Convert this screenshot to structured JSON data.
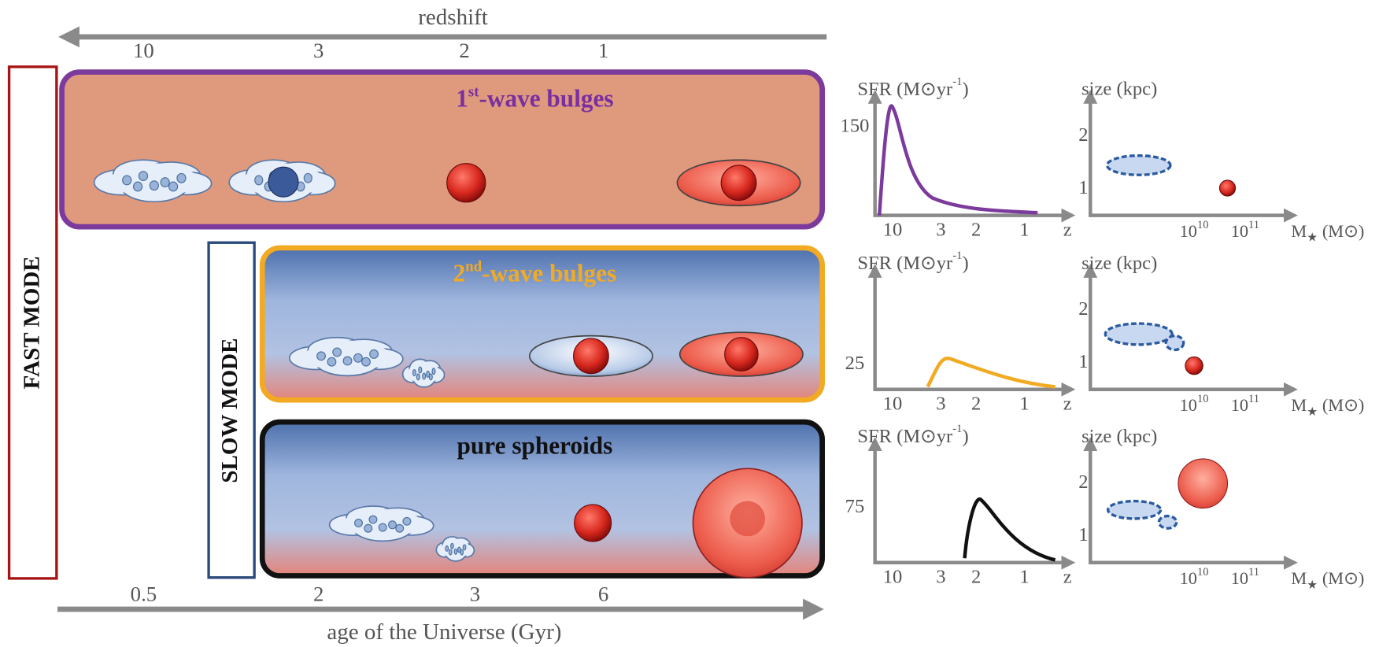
{
  "top_axis": {
    "label": "redshift",
    "ticks": [
      "10",
      "3",
      "2",
      "1"
    ]
  },
  "bottom_axis": {
    "label": "age of the Universe (Gyr)",
    "ticks": [
      "0.5",
      "2",
      "3",
      "6"
    ]
  },
  "modes": [
    "FAST MODE",
    "SLOW MODE"
  ],
  "panels": [
    {
      "title": {
        "text": "1",
        "sup": "st",
        "rest": "-wave bulges"
      }
    },
    {
      "title": {
        "text": "2",
        "sup": "nd",
        "rest": "-wave bulges"
      }
    },
    {
      "title": {
        "text": "pure spheroids"
      }
    }
  ],
  "sfr_plots": {
    "y_label": {
      "text": "SFR (M⊙yr",
      "sup": "-1",
      "rest": ")"
    },
    "x_ticks": [
      "10",
      "3",
      "2",
      "1"
    ],
    "x_label": "z",
    "y_ticks": [
      "150",
      "25",
      "75"
    ]
  },
  "size_plots": {
    "y_label": "size (kpc)",
    "y_ticks": [
      "2",
      "1"
    ],
    "x_ticks": [
      {
        "base": "10",
        "exp": "10"
      },
      {
        "base": "10",
        "exp": "11"
      }
    ],
    "x_label": {
      "text": "M",
      "sub": "★",
      "rest": " (M⊙)"
    }
  }
}
